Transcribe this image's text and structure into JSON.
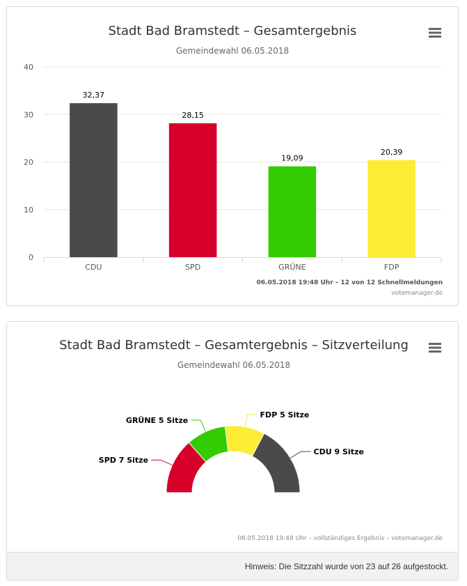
{
  "chart_data": [
    {
      "type": "bar",
      "title": "Stadt Bad Bramstedt – Gesamtergebnis",
      "subtitle": "Gemeindewahl 06.05.2018",
      "categories": [
        "CDU",
        "SPD",
        "GRÜNE",
        "FDP"
      ],
      "values": [
        32.37,
        28.15,
        19.09,
        20.39
      ],
      "value_labels": [
        "32,37",
        "28,15",
        "19,09",
        "20,39"
      ],
      "colors": [
        "#4a4a4a",
        "#d7002a",
        "#33cc00",
        "#fcec35"
      ],
      "ylim": [
        0,
        40
      ],
      "yticks": [
        0,
        10,
        20,
        30,
        40
      ],
      "grid": true,
      "caption": "06.05.2018 19:48 Uhr – 12 von 12 Schnellmeldungen",
      "credit": "votemanager.de",
      "menu_icon": "hamburger-menu-icon"
    },
    {
      "type": "pie",
      "title": "Stadt Bad Bramstedt – Gesamtergebnis – Sitzverteilung",
      "subtitle": "Gemeindewahl 06.05.2018",
      "shape": "semicircle",
      "slices": [
        {
          "label": "SPD 7 Sitze",
          "value": 7,
          "color": "#d7002a"
        },
        {
          "label": "GRÜNE 5 Sitze",
          "value": 5,
          "color": "#33cc00"
        },
        {
          "label": "FDP 5 Sitze",
          "value": 5,
          "color": "#fcec35"
        },
        {
          "label": "CDU 9 Sitze",
          "value": 9,
          "color": "#4a4a4a"
        }
      ],
      "caption": "06.05.2018 19:48 Uhr – vollständiges Ergebnis – votemanager.de",
      "menu_icon": "hamburger-menu-icon"
    }
  ],
  "footer_note": "Hinweis: Die Sitzzahl wurde von 23 auf 26 aufgestockt."
}
